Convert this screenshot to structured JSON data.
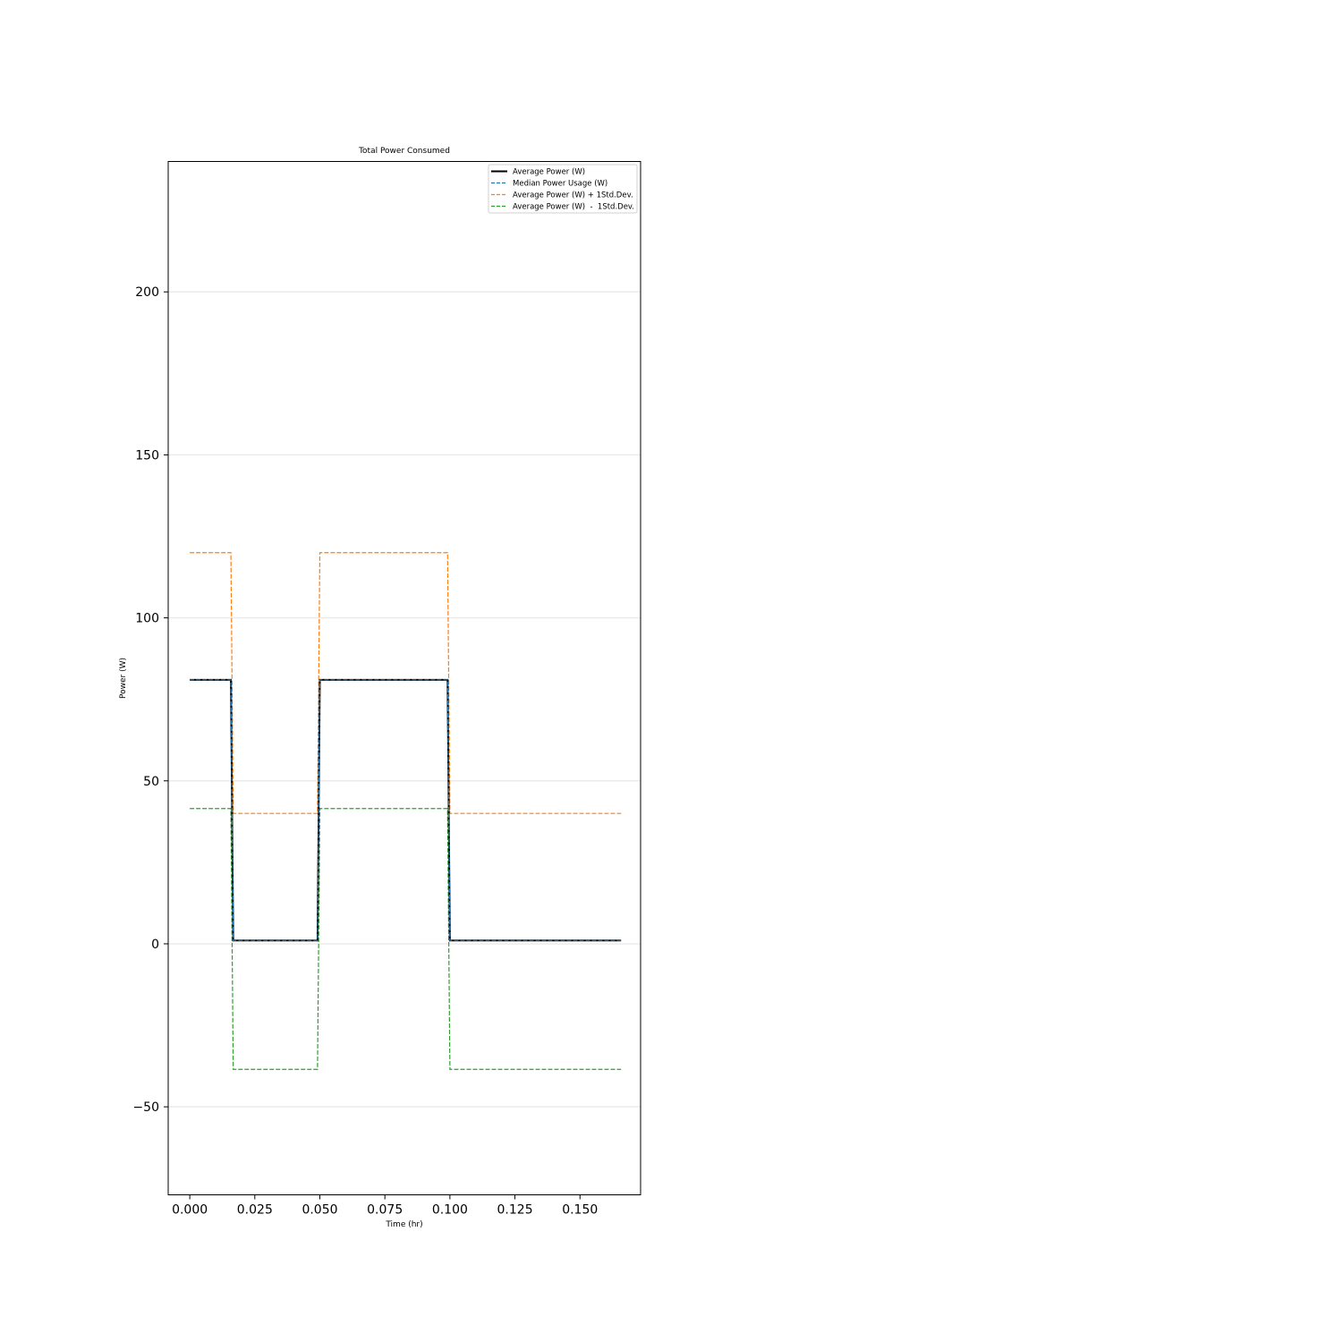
{
  "chart_data": {
    "type": "line",
    "title": "Total Power Consumed",
    "xlabel": "Time (hr)",
    "ylabel": "Power (W)",
    "xlim": [
      -0.0083,
      0.1733
    ],
    "ylim": [
      -77,
      240
    ],
    "xticks": [
      0.0,
      0.025,
      0.05,
      0.075,
      0.1,
      0.125,
      0.15
    ],
    "xtick_labels": [
      "0.000",
      "0.025",
      "0.050",
      "0.075",
      "0.100",
      "0.125",
      "0.150"
    ],
    "yticks": [
      -50,
      0,
      50,
      100,
      150,
      200
    ],
    "ytick_labels": [
      "−50",
      "0",
      "50",
      "100",
      "150",
      "200"
    ],
    "grid": "horizontal",
    "legend_position": "upper right",
    "series": [
      {
        "name": "Average Power (W)",
        "color": "#000000",
        "style": "solid",
        "x": [
          0.0,
          0.0158,
          0.0167,
          0.0491,
          0.05,
          0.0991,
          0.1,
          0.1658
        ],
        "y": [
          81,
          81,
          1,
          1,
          81,
          81,
          1,
          1
        ]
      },
      {
        "name": "Median Power Usage (W)",
        "color": "#1f77b4",
        "style": "dashed",
        "x": [
          0.0,
          0.0158,
          0.0167,
          0.0491,
          0.05,
          0.0991,
          0.1,
          0.1658
        ],
        "y": [
          81,
          81,
          1,
          1,
          81,
          81,
          1,
          1
        ]
      },
      {
        "name": "Average Power (W) + 1Std.Dev.",
        "color": "#ff7f0e",
        "style": "dashed",
        "x": [
          0.0,
          0.0158,
          0.0167,
          0.0491,
          0.05,
          0.0991,
          0.1,
          0.1658
        ],
        "y": [
          120,
          120,
          40,
          40,
          120,
          120,
          40,
          40
        ]
      },
      {
        "name": "Average Power (W)  -  1Std.Dev.",
        "color": "#2ca02c",
        "style": "dashed",
        "x": [
          0.0,
          0.0158,
          0.0167,
          0.0491,
          0.05,
          0.0991,
          0.1,
          0.1658
        ],
        "y": [
          41.5,
          41.5,
          -38.5,
          -38.5,
          41.5,
          41.5,
          -38.5,
          -38.5
        ]
      }
    ]
  }
}
